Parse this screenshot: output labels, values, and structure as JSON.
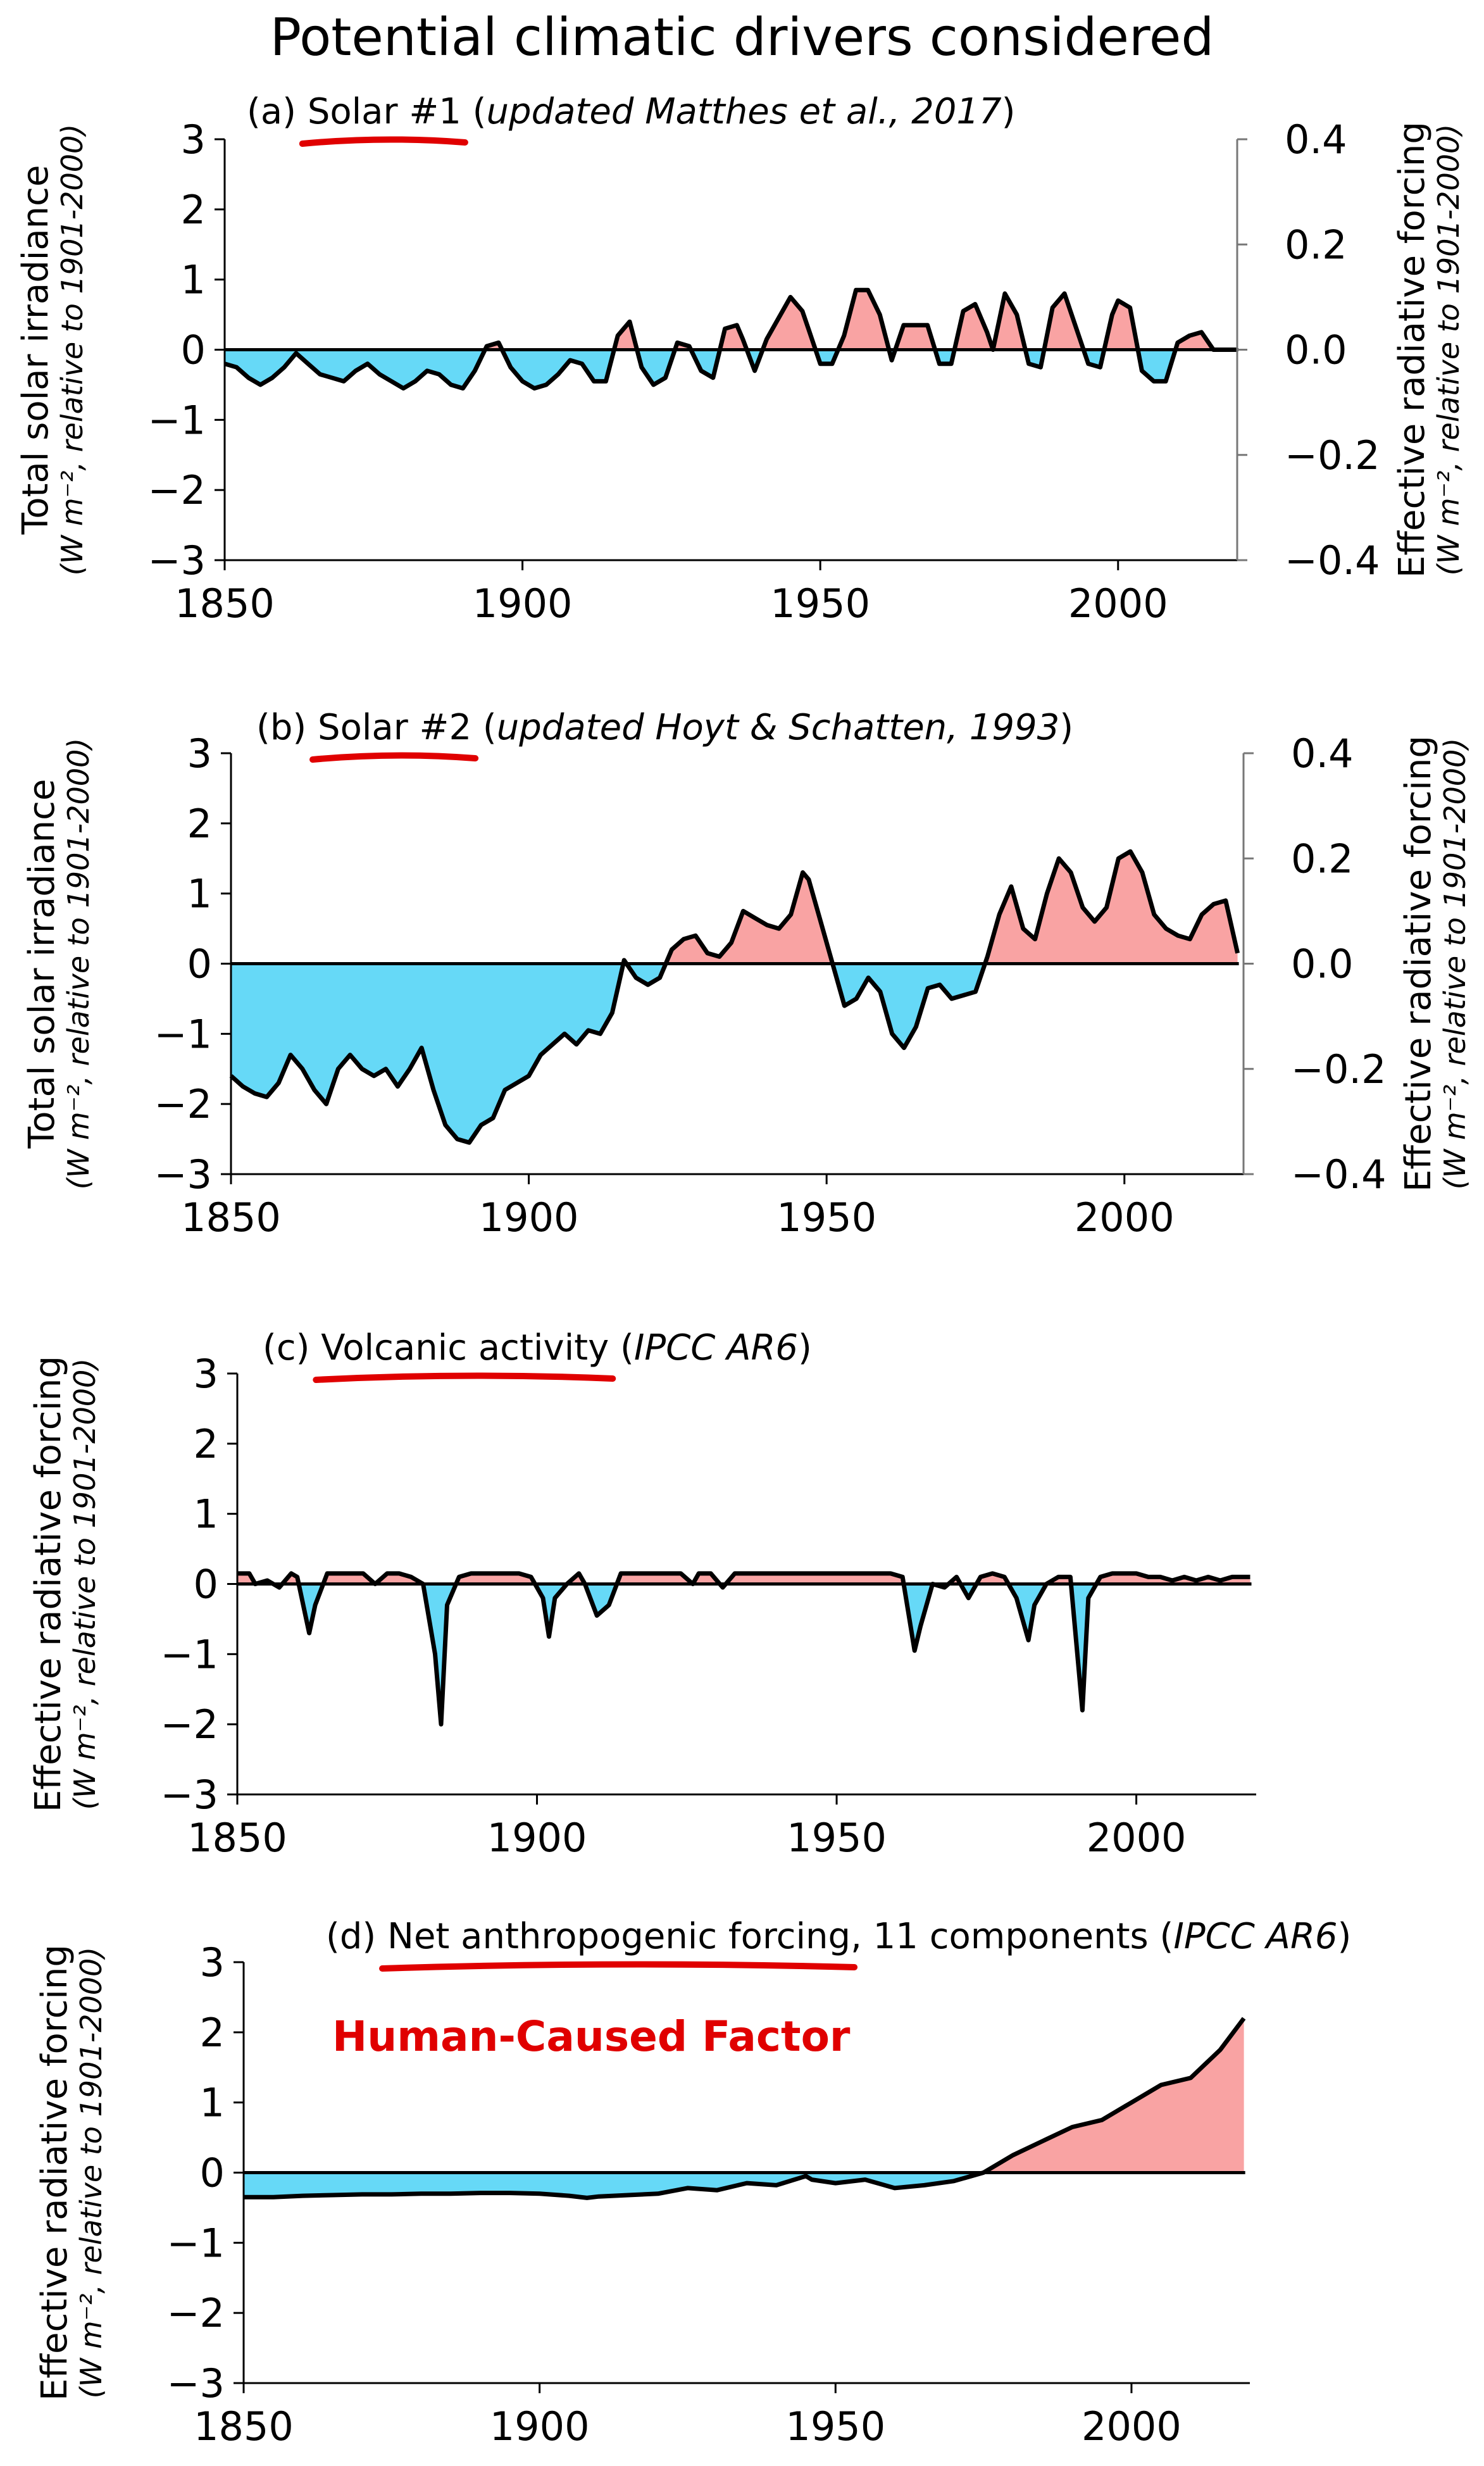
{
  "figure_title": "Potential climatic drivers considered",
  "colors": {
    "positive": "#f9a3a3",
    "negative": "#66d9f7",
    "line": "#000000",
    "underline": "#e00000",
    "annotation": "#e00000"
  },
  "chart_data": [
    {
      "type": "area",
      "panel": "(a)",
      "title": {
        "prefix": "(a) ",
        "name": "Solar #1",
        "open": " (",
        "source": "updated Matthes et al., 2017",
        "close": ")"
      },
      "ylabel": "Total solar irradiance",
      "yunit": "(W m⁻², relative to 1901-2000)",
      "y2label": "Effective radiative forcing",
      "y2unit": "(W m⁻², relative to 1901-2000)",
      "xlim": [
        1850,
        2020
      ],
      "ylim": [
        -3,
        3
      ],
      "y2lim": [
        -0.4,
        0.4
      ],
      "xticks": [
        "1850",
        "1900",
        "1950",
        "2000"
      ],
      "yticks": [
        "3",
        "2",
        "1",
        "0",
        "−1",
        "−2",
        "−3"
      ],
      "y2ticks": [
        "0.4",
        "0.2",
        "0.0",
        "−0.2",
        "−0.4"
      ],
      "x": [
        1850,
        1852,
        1854,
        1856,
        1858,
        1860,
        1862,
        1864,
        1866,
        1868,
        1870,
        1872,
        1874,
        1876,
        1878,
        1880,
        1882,
        1884,
        1886,
        1888,
        1890,
        1892,
        1894,
        1896,
        1898,
        1900,
        1902,
        1904,
        1906,
        1908,
        1910,
        1912,
        1914,
        1916,
        1918,
        1920,
        1922,
        1924,
        1926,
        1928,
        1930,
        1932,
        1934,
        1936,
        1937,
        1939,
        1941,
        1943,
        1945,
        1947,
        1948,
        1950,
        1952,
        1954,
        1956,
        1957,
        1958,
        1960,
        1962,
        1964,
        1966,
        1968,
        1970,
        1972,
        1974,
        1976,
        1978,
        1979,
        1981,
        1983,
        1985,
        1987,
        1989,
        1991,
        1993,
        1995,
        1997,
        1999,
        2000,
        2002,
        2004,
        2006,
        2008,
        2010,
        2012,
        2014,
        2016,
        2018,
        2020
      ],
      "values": [
        -0.2,
        -0.25,
        -0.4,
        -0.5,
        -0.4,
        -0.25,
        -0.05,
        -0.2,
        -0.35,
        -0.4,
        -0.45,
        -0.3,
        -0.2,
        -0.35,
        -0.45,
        -0.55,
        -0.45,
        -0.3,
        -0.35,
        -0.5,
        -0.55,
        -0.3,
        0.05,
        0.1,
        -0.25,
        -0.45,
        -0.55,
        -0.5,
        -0.35,
        -0.15,
        -0.2,
        -0.45,
        -0.45,
        0.2,
        0.4,
        -0.25,
        -0.5,
        -0.4,
        0.1,
        0.05,
        -0.3,
        -0.4,
        0.3,
        0.35,
        0.15,
        -0.3,
        0.15,
        0.45,
        0.75,
        0.55,
        0.3,
        -0.2,
        -0.2,
        0.2,
        0.85,
        0.85,
        0.85,
        0.5,
        -0.15,
        0.35,
        0.35,
        0.35,
        -0.2,
        -0.2,
        0.55,
        0.65,
        0.25,
        0.0,
        0.8,
        0.5,
        -0.2,
        -0.25,
        0.6,
        0.8,
        0.3,
        -0.2,
        -0.25,
        0.5,
        0.7,
        0.6,
        -0.3,
        -0.45,
        -0.45,
        0.1,
        0.2,
        0.25,
        0.0,
        0.0,
        0.0
      ]
    },
    {
      "type": "area",
      "panel": "(b)",
      "title": {
        "prefix": "(b) ",
        "name": "Solar #2",
        "open": " (",
        "source": "updated Hoyt & Schatten, 1993",
        "close": ")"
      },
      "ylabel": "Total solar irradiance",
      "yunit": "(W m⁻², relative to 1901-2000)",
      "y2label": "Effective radiative forcing",
      "y2unit": "(W m⁻², relative to 1901-2000)",
      "xlim": [
        1850,
        2020
      ],
      "ylim": [
        -3,
        3
      ],
      "y2lim": [
        -0.4,
        0.4
      ],
      "xticks": [
        "1850",
        "1900",
        "1950",
        "2000"
      ],
      "yticks": [
        "3",
        "2",
        "1",
        "0",
        "−1",
        "−2",
        "−3"
      ],
      "y2ticks": [
        "0.4",
        "0.2",
        "0.0",
        "−0.2",
        "−0.4"
      ],
      "x": [
        1850,
        1852,
        1854,
        1856,
        1858,
        1860,
        1862,
        1864,
        1866,
        1868,
        1870,
        1872,
        1874,
        1876,
        1878,
        1880,
        1882,
        1884,
        1886,
        1888,
        1890,
        1892,
        1894,
        1896,
        1898,
        1900,
        1902,
        1904,
        1906,
        1908,
        1910,
        1912,
        1914,
        1916,
        1918,
        1920,
        1922,
        1924,
        1926,
        1928,
        1930,
        1932,
        1934,
        1936,
        1938,
        1940,
        1942,
        1944,
        1946,
        1947,
        1949,
        1951,
        1953,
        1955,
        1957,
        1959,
        1961,
        1963,
        1965,
        1967,
        1969,
        1971,
        1973,
        1975,
        1977,
        1979,
        1981,
        1983,
        1985,
        1987,
        1989,
        1991,
        1993,
        1995,
        1997,
        1999,
        2001,
        2003,
        2005,
        2007,
        2009,
        2011,
        2013,
        2015,
        2017,
        2019
      ],
      "values": [
        -1.6,
        -1.75,
        -1.85,
        -1.9,
        -1.7,
        -1.3,
        -1.5,
        -1.8,
        -2.0,
        -1.5,
        -1.3,
        -1.5,
        -1.6,
        -1.5,
        -1.75,
        -1.5,
        -1.2,
        -1.8,
        -2.3,
        -2.5,
        -2.55,
        -2.3,
        -2.2,
        -1.8,
        -1.7,
        -1.6,
        -1.3,
        -1.15,
        -1.0,
        -1.15,
        -0.95,
        -1.0,
        -0.7,
        0.05,
        -0.2,
        -0.3,
        -0.2,
        0.2,
        0.35,
        0.4,
        0.15,
        0.1,
        0.3,
        0.75,
        0.65,
        0.55,
        0.5,
        0.7,
        1.3,
        1.2,
        0.6,
        0.0,
        -0.6,
        -0.5,
        -0.2,
        -0.4,
        -1.0,
        -1.2,
        -0.9,
        -0.35,
        -0.3,
        -0.5,
        -0.45,
        -0.4,
        0.1,
        0.7,
        1.1,
        0.5,
        0.35,
        1.0,
        1.5,
        1.3,
        0.8,
        0.6,
        0.8,
        1.5,
        1.6,
        1.3,
        0.7,
        0.5,
        0.4,
        0.35,
        0.7,
        0.85,
        0.9,
        0.15
      ]
    },
    {
      "type": "area",
      "panel": "(c)",
      "title": {
        "prefix": "(c) ",
        "name": "Volcanic activity",
        "open": " (",
        "source": "IPCC AR6",
        "close": ")"
      },
      "ylabel": "Effective radiative forcing",
      "yunit": "(W m⁻², relative to 1901-2000)",
      "xlim": [
        1850,
        2020
      ],
      "ylim": [
        -3,
        3
      ],
      "xticks": [
        "1850",
        "1900",
        "1950",
        "2000"
      ],
      "yticks": [
        "3",
        "2",
        "1",
        "0",
        "−1",
        "−2",
        "−3"
      ],
      "x": [
        1850,
        1852,
        1853,
        1855,
        1857,
        1859,
        1860,
        1862,
        1863,
        1865,
        1867,
        1869,
        1871,
        1873,
        1875,
        1877,
        1879,
        1881,
        1883,
        1884,
        1885,
        1887,
        1889,
        1891,
        1893,
        1895,
        1897,
        1899,
        1901,
        1902,
        1903,
        1905,
        1907,
        1908,
        1910,
        1912,
        1914,
        1916,
        1918,
        1920,
        1922,
        1924,
        1926,
        1927,
        1929,
        1931,
        1933,
        1935,
        1937,
        1939,
        1941,
        1943,
        1945,
        1947,
        1949,
        1951,
        1953,
        1955,
        1957,
        1959,
        1961,
        1963,
        1964,
        1966,
        1968,
        1970,
        1972,
        1974,
        1976,
        1978,
        1980,
        1982,
        1983,
        1985,
        1987,
        1989,
        1991,
        1992,
        1994,
        1996,
        1998,
        2000,
        2002,
        2004,
        2006,
        2008,
        2010,
        2012,
        2014,
        2016,
        2018,
        2019
      ],
      "values": [
        0.15,
        0.15,
        0.0,
        0.05,
        -0.05,
        0.15,
        0.1,
        -0.7,
        -0.3,
        0.15,
        0.15,
        0.15,
        0.15,
        0.0,
        0.15,
        0.15,
        0.1,
        0.0,
        -1.0,
        -2.0,
        -0.3,
        0.1,
        0.15,
        0.15,
        0.15,
        0.15,
        0.15,
        0.1,
        -0.2,
        -0.75,
        -0.2,
        0.0,
        0.15,
        0.0,
        -0.45,
        -0.3,
        0.15,
        0.15,
        0.15,
        0.15,
        0.15,
        0.15,
        0.0,
        0.15,
        0.15,
        -0.05,
        0.15,
        0.15,
        0.15,
        0.15,
        0.15,
        0.15,
        0.15,
        0.15,
        0.15,
        0.15,
        0.15,
        0.15,
        0.15,
        0.15,
        0.1,
        -0.95,
        -0.6,
        0.0,
        -0.05,
        0.1,
        -0.2,
        0.1,
        0.15,
        0.1,
        -0.2,
        -0.8,
        -0.3,
        0.0,
        0.1,
        0.1,
        -1.8,
        -0.2,
        0.1,
        0.15,
        0.15,
        0.15,
        0.1,
        0.1,
        0.05,
        0.1,
        0.05,
        0.1,
        0.05,
        0.1,
        0.1,
        0.1
      ]
    },
    {
      "type": "area",
      "panel": "(d)",
      "title": {
        "prefix": "(d) ",
        "name": "Net anthropogenic forcing",
        "rest": ", 11 components",
        "open": " (",
        "source": "IPCC AR6",
        "close": ")"
      },
      "ylabel": "Effective radiative forcing",
      "yunit": "(W m⁻², relative to 1901-2000)",
      "annotation": "Human-Caused Factor",
      "xlim": [
        1850,
        2020
      ],
      "ylim": [
        -3,
        3
      ],
      "xticks": [
        "1850",
        "1900",
        "1950",
        "2000"
      ],
      "yticks": [
        "3",
        "2",
        "1",
        "0",
        "−1",
        "−2",
        "−3"
      ],
      "x": [
        1850,
        1855,
        1860,
        1865,
        1870,
        1875,
        1880,
        1885,
        1890,
        1895,
        1900,
        1905,
        1908,
        1910,
        1915,
        1920,
        1925,
        1930,
        1935,
        1940,
        1945,
        1946,
        1950,
        1955,
        1960,
        1965,
        1970,
        1975,
        1980,
        1985,
        1990,
        1995,
        2000,
        2005,
        2010,
        2015,
        2019
      ],
      "values": [
        -0.35,
        -0.35,
        -0.33,
        -0.32,
        -0.31,
        -0.31,
        -0.3,
        -0.3,
        -0.29,
        -0.29,
        -0.3,
        -0.33,
        -0.36,
        -0.34,
        -0.32,
        -0.3,
        -0.22,
        -0.25,
        -0.15,
        -0.18,
        -0.05,
        -0.1,
        -0.15,
        -0.1,
        -0.22,
        -0.18,
        -0.12,
        0.0,
        0.25,
        0.45,
        0.65,
        0.75,
        1.0,
        1.25,
        1.35,
        1.75,
        2.2
      ]
    }
  ]
}
